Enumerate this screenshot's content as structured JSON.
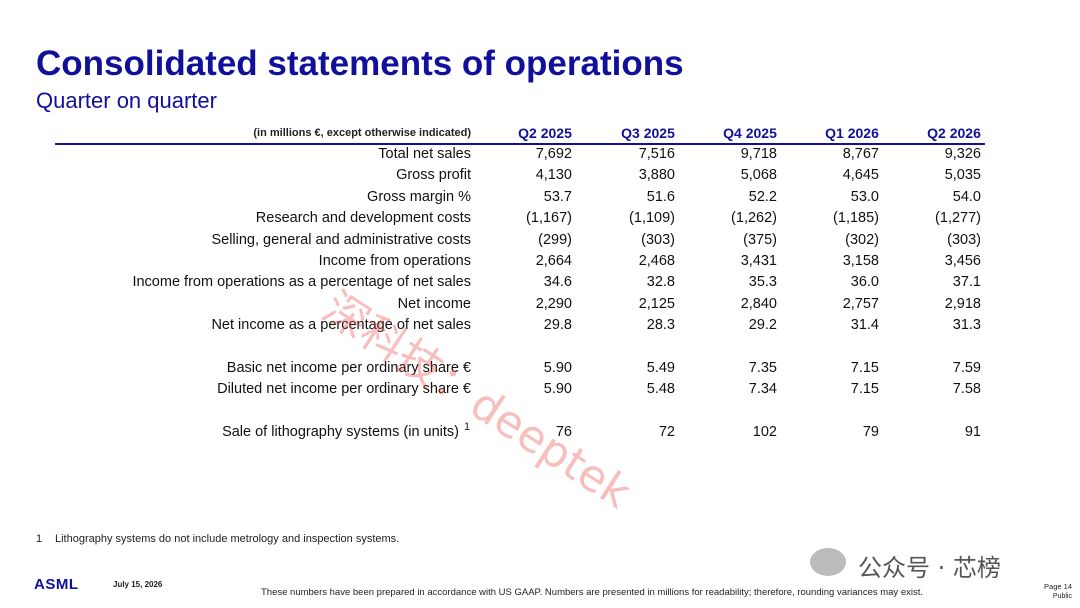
{
  "header": {
    "title": "Consolidated statements of operations",
    "subtitle": "Quarter on quarter"
  },
  "table": {
    "caption": "(in millions €, except otherwise indicated)",
    "columns": [
      "Q2 2025",
      "Q3 2025",
      "Q4 2025",
      "Q1 2026",
      "Q2 2026"
    ],
    "groups": [
      [
        [
          "Total net sales",
          "7,692",
          "7,516",
          "9,718",
          "8,767",
          "9,326"
        ],
        [
          "Gross profit",
          "4,130",
          "3,880",
          "5,068",
          "4,645",
          "5,035"
        ],
        [
          "Gross margin %",
          "53.7",
          "51.6",
          "52.2",
          "53.0",
          "54.0"
        ],
        [
          "Research and development costs",
          "(1,167)",
          "(1,109)",
          "(1,262)",
          "(1,185)",
          "(1,277)"
        ],
        [
          "Selling, general and administrative costs",
          "(299)",
          "(303)",
          "(375)",
          "(302)",
          "(303)"
        ],
        [
          "Income from operations",
          "2,664",
          "2,468",
          "3,431",
          "3,158",
          "3,456"
        ],
        [
          "Income from operations as a percentage of net sales",
          "34.6",
          "32.8",
          "35.3",
          "36.0",
          "37.1"
        ],
        [
          "Net income",
          "2,290",
          "2,125",
          "2,840",
          "2,757",
          "2,918"
        ],
        [
          "Net income as a percentage of net sales",
          "29.8",
          "28.3",
          "29.2",
          "31.4",
          "31.3"
        ]
      ],
      [
        [
          "Basic net income per ordinary share €",
          "5.90",
          "5.49",
          "7.35",
          "7.15",
          "7.59"
        ],
        [
          "Diluted net income per ordinary share €",
          "5.90",
          "5.48",
          "7.34",
          "7.15",
          "7.58"
        ]
      ],
      [
        [
          "Sale of lithography systems (in units)",
          "76",
          "72",
          "102",
          "79",
          "91"
        ]
      ]
    ],
    "note_mark": "1"
  },
  "footnote": {
    "mark": "1",
    "text": "Lithography systems do not include metrology and inspection systems."
  },
  "watermark": "深科技：deeptek",
  "wechat": "公众号 · 芯榜",
  "footer": {
    "logo": "ASML",
    "date": "July 15, 2026",
    "disclaimer": "These numbers have been prepared in accordance with US GAAP.  Numbers are presented in millions for readability; therefore, rounding variances may exist.",
    "page": "Page 14",
    "classification": "Public"
  }
}
